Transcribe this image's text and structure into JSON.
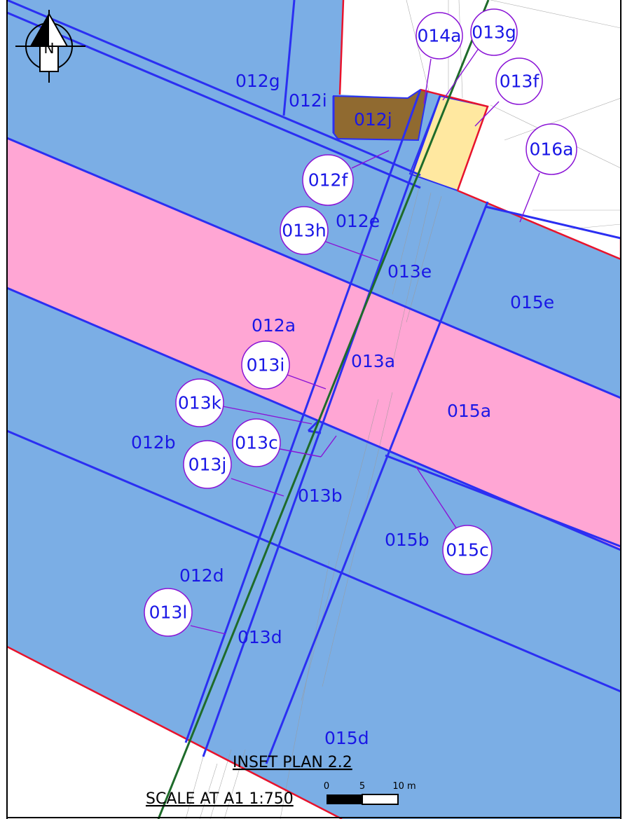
{
  "colors": {
    "parcel_blue": "#7baee5",
    "parcel_pink": "#ffa6d4",
    "parcel_brown": "#906a30",
    "parcel_yellow": "#ffe8a0",
    "boundary_blue": "#2b2ff2",
    "boundary_red": "#e8132c",
    "line_green": "#1e6b2a",
    "leader_purple": "#8a13d6",
    "label_blue": "#1a17e6"
  },
  "north_arrow": {
    "letter": "N"
  },
  "plot_labels": {
    "p012g": "012g",
    "p012i": "012i",
    "p012j": "012j",
    "p012e": "012e",
    "p013e": "013e",
    "p015e": "015e",
    "p012a": "012a",
    "p013a": "013a",
    "p015a": "015a",
    "p012b": "012b",
    "p013b": "013b",
    "p015b": "015b",
    "p012d": "012d",
    "p013d": "013d",
    "p015d": "015d"
  },
  "callouts": {
    "c014a": "014a",
    "c013g": "013g",
    "c013f": "013f",
    "c016a": "016a",
    "c012f": "012f",
    "c013h": "013h",
    "c013i": "013i",
    "c013k": "013k",
    "c013c": "013c",
    "c013j": "013j",
    "c015c": "015c",
    "c013l": "013l"
  },
  "inset_title": "INSET PLAN 2.2",
  "scale_text": "SCALE AT A1 1:750",
  "scale_bar": {
    "tick_0": "0",
    "tick_5": "5",
    "tick_10": "10 m"
  }
}
